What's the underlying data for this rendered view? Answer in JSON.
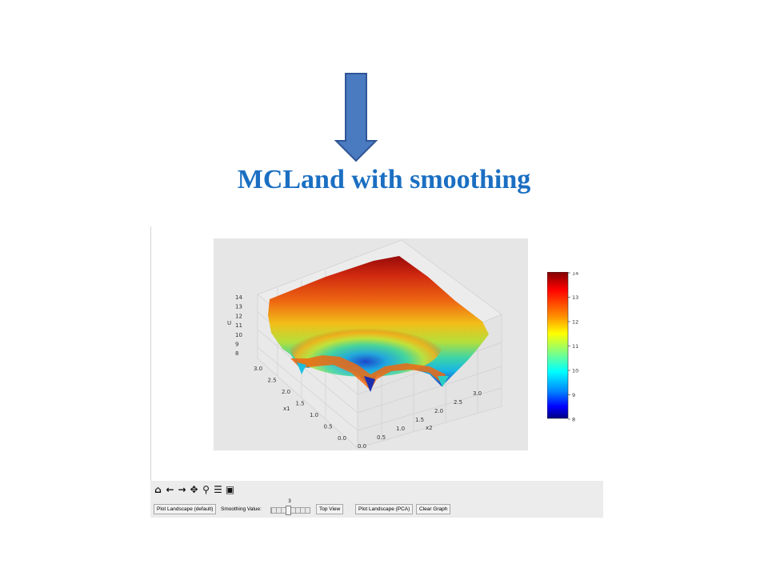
{
  "slide": {
    "title": "MCLand with smoothing"
  },
  "plot": {
    "z_label": "U",
    "x1_label": "x1",
    "x2_label": "x2",
    "z_ticks": [
      "14",
      "13",
      "12",
      "11",
      "10",
      "9",
      "8"
    ],
    "x1_ticks": [
      "3.0",
      "2.5",
      "2.0",
      "1.5",
      "1.0",
      "0.5",
      "0.0"
    ],
    "x2_ticks": [
      "0.0",
      "0.5",
      "1.0",
      "1.5",
      "2.0",
      "2.5",
      "3.0"
    ],
    "colormap": "jet",
    "z_range": [
      8,
      14
    ]
  },
  "colorbar": {
    "ticks": [
      "14",
      "13",
      "12",
      "11",
      "10",
      "9",
      "8"
    ]
  },
  "toolbar": {
    "buttons": [
      {
        "name": "home-icon",
        "glyph": "⌂"
      },
      {
        "name": "back-icon",
        "glyph": "←"
      },
      {
        "name": "forward-icon",
        "glyph": "→"
      },
      {
        "name": "pan-icon",
        "glyph": "✥"
      },
      {
        "name": "zoom-icon",
        "glyph": "⚲"
      },
      {
        "name": "configure-subplots-icon",
        "glyph": "☰"
      },
      {
        "name": "save-icon",
        "glyph": "▣"
      }
    ]
  },
  "controls": {
    "plot_landscape_default": "Plot Landscape (default)",
    "smoothing_label": "Smoothing Value:",
    "smoothing_value": "3",
    "top_view": "Top View",
    "plot_landscape_pca": "Plot Landscape (PCA)",
    "clear_graph": "Clear Graph"
  }
}
